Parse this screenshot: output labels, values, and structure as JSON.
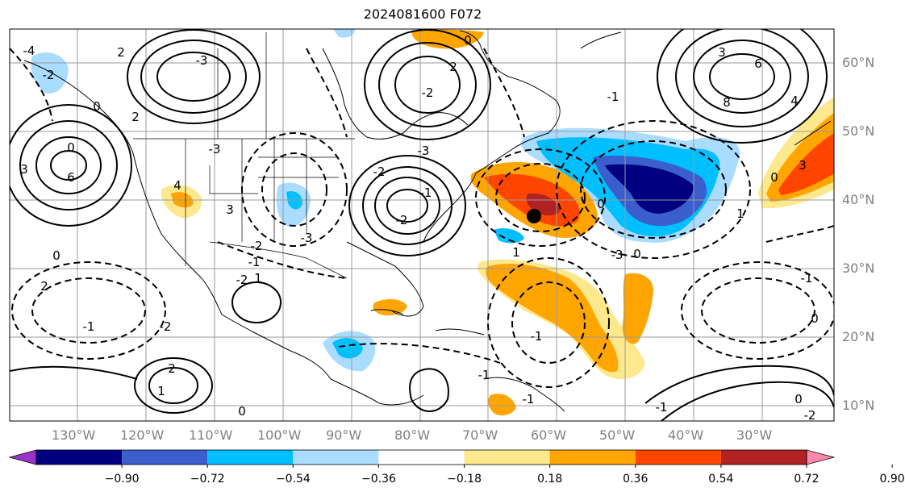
{
  "title": "2024081600 F072",
  "map": {
    "longitude_labels": [
      "130°W",
      "120°W",
      "110°W",
      "100°W",
      "90°W",
      "80°W",
      "70°W",
      "60°W",
      "50°W",
      "40°W",
      "30°W"
    ],
    "latitude_labels": [
      "60°N",
      "50°N",
      "40°N",
      "30°N",
      "20°N",
      "10°N"
    ],
    "contour_labels": [
      "-4",
      "-2",
      "0",
      "2",
      "-3",
      "3",
      "0",
      "6",
      "-3",
      "4",
      "3",
      "-2",
      "-3",
      "-1",
      "-2",
      "-3",
      "-2",
      "-1",
      "-2",
      "2",
      "2",
      "-2",
      "0",
      "-1",
      "3",
      "6",
      "8",
      "4",
      "3",
      "0",
      "-3",
      "-1",
      "-1",
      "-2",
      "0",
      "1",
      "2",
      "-1",
      "0",
      "0",
      "1",
      "-1",
      "0",
      "0",
      "-2",
      "-1",
      "0",
      "2",
      "1",
      "1",
      "-1"
    ],
    "marker": "storm-center",
    "colors": {
      "pos_018_036": "#fde88d",
      "pos_036_054": "#ffa500",
      "pos_054_072": "#ff4500",
      "pos_072_090": "#b22222",
      "neg_018_036": "#aadcff",
      "neg_036_054": "#00bfff",
      "neg_054_072": "#3a5fcd",
      "neg_072_090": "#000080"
    }
  },
  "colorbar": {
    "ticks": [
      "−0.90",
      "−0.72",
      "−0.54",
      "−0.36",
      "−0.18",
      "0.18",
      "0.36",
      "0.54",
      "0.72",
      "0.90"
    ],
    "colors": [
      "#9933cc",
      "#000080",
      "#3a5fcd",
      "#00bfff",
      "#aadcff",
      "#ffffff",
      "#fde88d",
      "#ffa500",
      "#ff4500",
      "#b22222",
      "#ff88aa"
    ]
  }
}
